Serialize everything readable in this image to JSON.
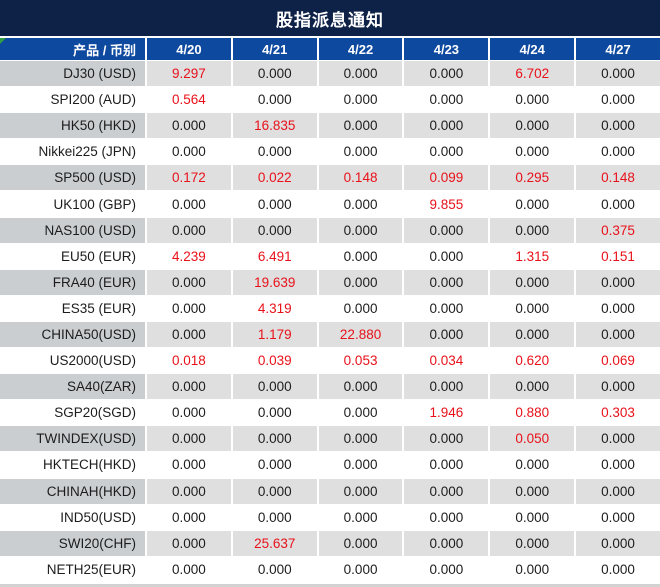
{
  "title": "股指派息通知",
  "header": {
    "product_label": "产品 / 币别",
    "dates": [
      "4/20",
      "4/21",
      "4/22",
      "4/23",
      "4/24",
      "4/27"
    ]
  },
  "colors": {
    "title_bg": "#0e2247",
    "header_bg": "#0e49a0",
    "red": "#e8111a",
    "gray_label": "#cbced1",
    "gray_data": "#dfdfdf",
    "green_flag": "#2f9e44",
    "strip": "#d2d2d2"
  },
  "rows": [
    {
      "product": "DJ30 (USD)",
      "values": [
        "9.297",
        "0.000",
        "0.000",
        "0.000",
        "6.702",
        "0.000"
      ],
      "red": [
        true,
        false,
        false,
        false,
        true,
        false
      ]
    },
    {
      "product": "SPI200 (AUD)",
      "values": [
        "0.564",
        "0.000",
        "0.000",
        "0.000",
        "0.000",
        "0.000"
      ],
      "red": [
        true,
        false,
        false,
        false,
        false,
        false
      ]
    },
    {
      "product": "HK50 (HKD)",
      "values": [
        "0.000",
        "16.835",
        "0.000",
        "0.000",
        "0.000",
        "0.000"
      ],
      "red": [
        false,
        true,
        false,
        false,
        false,
        false
      ]
    },
    {
      "product": "Nikkei225 (JPN)",
      "values": [
        "0.000",
        "0.000",
        "0.000",
        "0.000",
        "0.000",
        "0.000"
      ],
      "red": [
        false,
        false,
        false,
        false,
        false,
        false
      ]
    },
    {
      "product": "SP500 (USD)",
      "values": [
        "0.172",
        "0.022",
        "0.148",
        "0.099",
        "0.295",
        "0.148"
      ],
      "red": [
        true,
        true,
        true,
        true,
        true,
        true
      ]
    },
    {
      "product": "UK100 (GBP)",
      "values": [
        "0.000",
        "0.000",
        "0.000",
        "9.855",
        "0.000",
        "0.000"
      ],
      "red": [
        false,
        false,
        false,
        true,
        false,
        false
      ]
    },
    {
      "product": "NAS100 (USD)",
      "values": [
        "0.000",
        "0.000",
        "0.000",
        "0.000",
        "0.000",
        "0.375"
      ],
      "red": [
        false,
        false,
        false,
        false,
        false,
        true
      ]
    },
    {
      "product": "EU50 (EUR)",
      "values": [
        "4.239",
        "6.491",
        "0.000",
        "0.000",
        "1.315",
        "0.151"
      ],
      "red": [
        true,
        true,
        false,
        false,
        true,
        true
      ]
    },
    {
      "product": "FRA40 (EUR)",
      "values": [
        "0.000",
        "19.639",
        "0.000",
        "0.000",
        "0.000",
        "0.000"
      ],
      "red": [
        false,
        true,
        false,
        false,
        false,
        false
      ]
    },
    {
      "product": "ES35 (EUR)",
      "values": [
        "0.000",
        "4.319",
        "0.000",
        "0.000",
        "0.000",
        "0.000"
      ],
      "red": [
        false,
        true,
        false,
        false,
        false,
        false
      ]
    },
    {
      "product": "CHINA50(USD)",
      "values": [
        "0.000",
        "1.179",
        "22.880",
        "0.000",
        "0.000",
        "0.000"
      ],
      "red": [
        false,
        true,
        true,
        false,
        false,
        false
      ]
    },
    {
      "product": "US2000(USD)",
      "values": [
        "0.018",
        "0.039",
        "0.053",
        "0.034",
        "0.620",
        "0.069"
      ],
      "red": [
        true,
        true,
        true,
        true,
        true,
        true
      ]
    },
    {
      "product": "SA40(ZAR)",
      "values": [
        "0.000",
        "0.000",
        "0.000",
        "0.000",
        "0.000",
        "0.000"
      ],
      "red": [
        false,
        false,
        false,
        false,
        false,
        false
      ]
    },
    {
      "product": "SGP20(SGD)",
      "values": [
        "0.000",
        "0.000",
        "0.000",
        "1.946",
        "0.880",
        "0.303"
      ],
      "red": [
        false,
        false,
        false,
        true,
        true,
        true
      ]
    },
    {
      "product": "TWINDEX(USD)",
      "values": [
        "0.000",
        "0.000",
        "0.000",
        "0.000",
        "0.050",
        "0.000"
      ],
      "red": [
        false,
        false,
        false,
        false,
        true,
        false
      ]
    },
    {
      "product": "HKTECH(HKD)",
      "values": [
        "0.000",
        "0.000",
        "0.000",
        "0.000",
        "0.000",
        "0.000"
      ],
      "red": [
        false,
        false,
        false,
        false,
        false,
        false
      ]
    },
    {
      "product": "CHINAH(HKD)",
      "values": [
        "0.000",
        "0.000",
        "0.000",
        "0.000",
        "0.000",
        "0.000"
      ],
      "red": [
        false,
        false,
        false,
        false,
        false,
        false
      ]
    },
    {
      "product": "IND50(USD)",
      "values": [
        "0.000",
        "0.000",
        "0.000",
        "0.000",
        "0.000",
        "0.000"
      ],
      "red": [
        false,
        false,
        false,
        false,
        false,
        false
      ]
    },
    {
      "product": "SWI20(CHF)",
      "values": [
        "0.000",
        "25.637",
        "0.000",
        "0.000",
        "0.000",
        "0.000"
      ],
      "red": [
        false,
        true,
        false,
        false,
        false,
        false
      ]
    },
    {
      "product": "NETH25(EUR)",
      "values": [
        "0.000",
        "0.000",
        "0.000",
        "0.000",
        "0.000",
        "0.000"
      ],
      "red": [
        false,
        false,
        false,
        false,
        false,
        false
      ]
    }
  ]
}
